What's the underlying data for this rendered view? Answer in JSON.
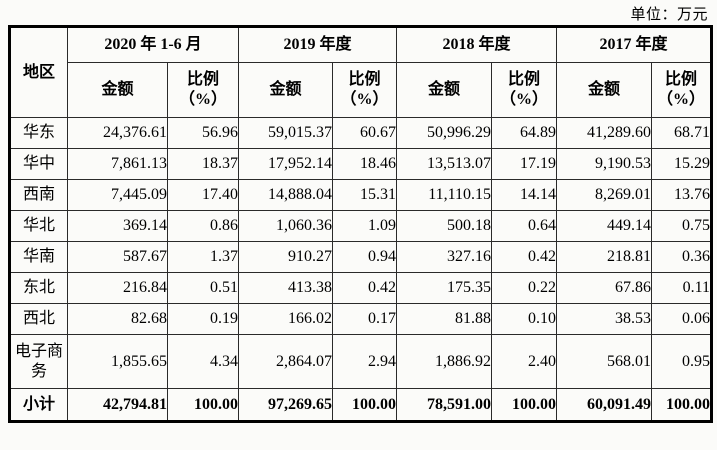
{
  "unit_label": "单位：万元",
  "table": {
    "region_header": "地区",
    "periods": [
      "2020 年 1-6 月",
      "2019 年度",
      "2018 年度",
      "2017 年度"
    ],
    "sub_amount": "金额",
    "sub_ratio_top": "比例",
    "sub_ratio_bottom": "（%）",
    "rows": [
      {
        "region": "华东",
        "values": [
          "24,376.61",
          "56.96",
          "59,015.37",
          "60.67",
          "50,996.29",
          "64.89",
          "41,289.60",
          "68.71"
        ],
        "bold": false,
        "tall": false
      },
      {
        "region": "华中",
        "values": [
          "7,861.13",
          "18.37",
          "17,952.14",
          "18.46",
          "13,513.07",
          "17.19",
          "9,190.53",
          "15.29"
        ],
        "bold": false,
        "tall": false
      },
      {
        "region": "西南",
        "values": [
          "7,445.09",
          "17.40",
          "14,888.04",
          "15.31",
          "11,110.15",
          "14.14",
          "8,269.01",
          "13.76"
        ],
        "bold": false,
        "tall": false
      },
      {
        "region": "华北",
        "values": [
          "369.14",
          "0.86",
          "1,060.36",
          "1.09",
          "500.18",
          "0.64",
          "449.14",
          "0.75"
        ],
        "bold": false,
        "tall": false
      },
      {
        "region": "华南",
        "values": [
          "587.67",
          "1.37",
          "910.27",
          "0.94",
          "327.16",
          "0.42",
          "218.81",
          "0.36"
        ],
        "bold": false,
        "tall": false
      },
      {
        "region": "东北",
        "values": [
          "216.84",
          "0.51",
          "413.38",
          "0.42",
          "175.35",
          "0.22",
          "67.86",
          "0.11"
        ],
        "bold": false,
        "tall": false
      },
      {
        "region": "西北",
        "values": [
          "82.68",
          "0.19",
          "166.02",
          "0.17",
          "81.88",
          "0.10",
          "38.53",
          "0.06"
        ],
        "bold": false,
        "tall": false
      },
      {
        "region": "电子商务",
        "values": [
          "1,855.65",
          "4.34",
          "2,864.07",
          "2.94",
          "1,886.92",
          "2.40",
          "568.01",
          "0.95"
        ],
        "bold": false,
        "tall": true
      },
      {
        "region": "小计",
        "values": [
          "42,794.81",
          "100.00",
          "97,269.65",
          "100.00",
          "78,591.00",
          "100.00",
          "60,091.49",
          "100.00"
        ],
        "bold": true,
        "tall": false
      }
    ]
  },
  "chart_data": {
    "type": "table",
    "title": "",
    "columns": [
      "地区",
      "2020年1-6月 金额",
      "2020年1-6月 比例(%)",
      "2019年度 金额",
      "2019年度 比例(%)",
      "2018年度 金额",
      "2018年度 比例(%)",
      "2017年度 金额",
      "2017年度 比例(%)"
    ],
    "unit": "万元",
    "rows": [
      [
        "华东",
        24376.61,
        56.96,
        59015.37,
        60.67,
        50996.29,
        64.89,
        41289.6,
        68.71
      ],
      [
        "华中",
        7861.13,
        18.37,
        17952.14,
        18.46,
        13513.07,
        17.19,
        9190.53,
        15.29
      ],
      [
        "西南",
        7445.09,
        17.4,
        14888.04,
        15.31,
        11110.15,
        14.14,
        8269.01,
        13.76
      ],
      [
        "华北",
        369.14,
        0.86,
        1060.36,
        1.09,
        500.18,
        0.64,
        449.14,
        0.75
      ],
      [
        "华南",
        587.67,
        1.37,
        910.27,
        0.94,
        327.16,
        0.42,
        218.81,
        0.36
      ],
      [
        "东北",
        216.84,
        0.51,
        413.38,
        0.42,
        175.35,
        0.22,
        67.86,
        0.11
      ],
      [
        "西北",
        82.68,
        0.19,
        166.02,
        0.17,
        81.88,
        0.1,
        38.53,
        0.06
      ],
      [
        "电子商务",
        1855.65,
        4.34,
        2864.07,
        2.94,
        1886.92,
        2.4,
        568.01,
        0.95
      ],
      [
        "小计",
        42794.81,
        100.0,
        97269.65,
        100.0,
        78591.0,
        100.0,
        60091.49,
        100.0
      ]
    ]
  }
}
